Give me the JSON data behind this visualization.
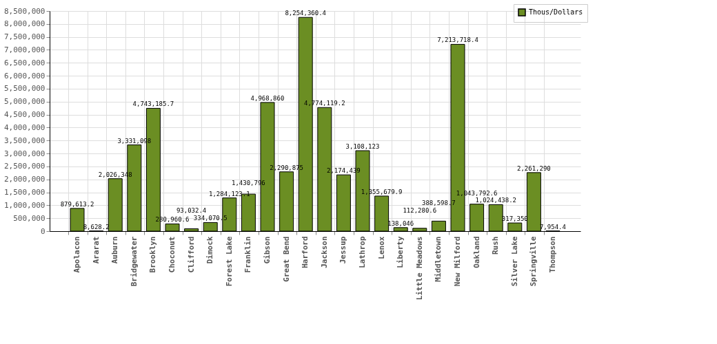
{
  "chart_data": {
    "type": "bar",
    "categories": [
      "Apolacon",
      "Ararat",
      "Auburn",
      "Bridgewater",
      "Brooklyn",
      "Choconut",
      "Clifford",
      "Dimock",
      "Forest Lake",
      "Franklin",
      "Gibson",
      "Great Bend",
      "Harford",
      "Jackson",
      "Jessup",
      "Lathrop",
      "Lenox",
      "Liberty",
      "Little Meadows",
      "Middletown",
      "New Milford",
      "Oakland",
      "Rush",
      "Silver Lake",
      "Springville",
      "Thompson"
    ],
    "series": [
      {
        "name": "Thous/Dollars",
        "color": "#6b8e23",
        "values": [
          879613.2,
          8628.2,
          2026348,
          3331098,
          4743185.7,
          280960.6,
          93032.4,
          334070.5,
          1284123.1,
          1430796,
          4968860,
          2290875,
          8254360.4,
          4774119.2,
          2174439,
          3108123,
          1355679.9,
          138046,
          112280.6,
          388598.7,
          7213718.4,
          1043792.6,
          1024438.2,
          317350,
          2261290,
          7954.4
        ],
        "value_labels": [
          "879,613.2",
          "8,628.2",
          "2,026,348",
          "3,331,098",
          "4,743,185.7",
          "280,960.6",
          "93,032.4",
          "334,070.5",
          "1,284,123.1",
          "1,430,796",
          "4,968,860",
          "2,290,875",
          "8,254,360.4",
          "4,774,119.2",
          "2,174,439",
          "3,108,123",
          "1,355,679.9",
          "138,046",
          "112,280.6",
          "388,598.7",
          "7,213,718.4",
          "1,043,792.6",
          "1,024,438.2",
          "317,350",
          "2,261,290",
          "7,954.4"
        ]
      }
    ],
    "ylim": [
      0,
      8500000
    ],
    "yticks": [
      0,
      {
        "value": 500000,
        "label": "500,000"
      },
      {
        "value": 1000000,
        "label": "1,000,000"
      },
      {
        "value": 1500000,
        "label": "1,500,000"
      },
      {
        "value": 2000000,
        "label": "2,000,000"
      },
      {
        "value": 2500000,
        "label": "2,500,000"
      },
      {
        "value": 3000000,
        "label": "3,000,000"
      },
      {
        "value": 3500000,
        "label": "3,500,000"
      },
      {
        "value": 4000000,
        "label": "4,000,000"
      },
      {
        "value": 4500000,
        "label": "4,500,000"
      },
      {
        "value": 5000000,
        "label": "5,000,000"
      },
      {
        "value": 5500000,
        "label": "5,500,000"
      },
      {
        "value": 6000000,
        "label": "6,000,000"
      },
      {
        "value": 6500000,
        "label": "6,500,000"
      },
      {
        "value": 7000000,
        "label": "7,000,000"
      },
      {
        "value": 7500000,
        "label": "7,500,000"
      },
      {
        "value": 8000000,
        "label": "8,000,000"
      },
      {
        "value": 8500000,
        "label": "8,500,000"
      }
    ],
    "data_labels": true,
    "grid": true,
    "legend": "top right"
  }
}
